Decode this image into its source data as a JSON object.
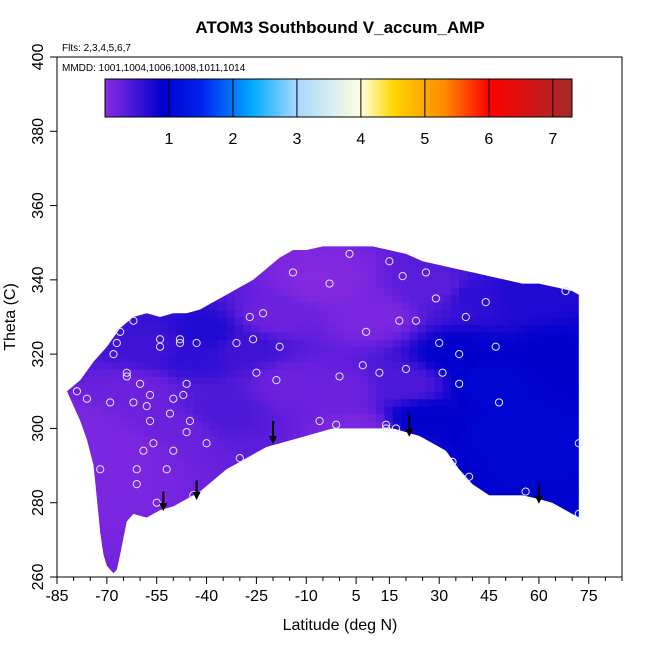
{
  "chart_data": {
    "type": "heatmap",
    "title": "ATOM3 Southbound V_accum_AMP",
    "flights_note": "Flts: 2,3,4,5,6,7",
    "dates_note": "MMDD: 1001,1004,1006,1008,1011,1014",
    "xlabel": "Latitude (deg N)",
    "ylabel": "Theta (C)",
    "xlim": [
      -85,
      85
    ],
    "ylim": [
      260,
      400
    ],
    "x_ticks": [
      -85,
      -70,
      -55,
      -40,
      -25,
      -10,
      5,
      15,
      30,
      45,
      60,
      75
    ],
    "y_ticks": [
      260,
      280,
      300,
      320,
      340,
      360,
      380,
      400
    ],
    "colorbar": {
      "range": [
        0,
        7.3
      ],
      "ticks": [
        1,
        2,
        3,
        4,
        5,
        6,
        7
      ],
      "stops": [
        {
          "v": 0.0,
          "c": "#8b2be2"
        },
        {
          "v": 0.9,
          "c": "#0000cd"
        },
        {
          "v": 1.5,
          "c": "#0022ee"
        },
        {
          "v": 2.3,
          "c": "#00aaff"
        },
        {
          "v": 3.0,
          "c": "#a8d8ff"
        },
        {
          "v": 4.0,
          "c": "#ffffe0"
        },
        {
          "v": 4.5,
          "c": "#ffd700"
        },
        {
          "v": 5.3,
          "c": "#ff8c00"
        },
        {
          "v": 6.0,
          "c": "#ff0000"
        },
        {
          "v": 7.3,
          "c": "#a52a2a"
        }
      ]
    },
    "coverage_upper": [
      [
        -82,
        310
      ],
      [
        -78,
        313
      ],
      [
        -74,
        318
      ],
      [
        -70,
        322
      ],
      [
        -66,
        327
      ],
      [
        -62,
        330
      ],
      [
        -58,
        331
      ],
      [
        -54,
        330
      ],
      [
        -50,
        331
      ],
      [
        -46,
        331
      ],
      [
        -42,
        332
      ],
      [
        -38,
        334
      ],
      [
        -34,
        336
      ],
      [
        -30,
        338
      ],
      [
        -26,
        340
      ],
      [
        -22,
        343
      ],
      [
        -18,
        346
      ],
      [
        -14,
        348
      ],
      [
        -10,
        348
      ],
      [
        -5,
        349
      ],
      [
        0,
        349
      ],
      [
        5,
        349
      ],
      [
        10,
        349
      ],
      [
        15,
        348
      ],
      [
        20,
        347
      ],
      [
        25,
        345
      ],
      [
        30,
        344
      ],
      [
        35,
        343
      ],
      [
        40,
        342
      ],
      [
        45,
        341
      ],
      [
        50,
        340
      ],
      [
        55,
        339
      ],
      [
        60,
        339
      ],
      [
        65,
        338
      ],
      [
        70,
        337
      ],
      [
        72,
        336
      ]
    ],
    "coverage_lower": [
      [
        72,
        276
      ],
      [
        68,
        278
      ],
      [
        64,
        280
      ],
      [
        60,
        281
      ],
      [
        55,
        282
      ],
      [
        50,
        282
      ],
      [
        45,
        282
      ],
      [
        40,
        285
      ],
      [
        36,
        289
      ],
      [
        32,
        294
      ],
      [
        28,
        296
      ],
      [
        24,
        298
      ],
      [
        20,
        299
      ],
      [
        16,
        300
      ],
      [
        12,
        300
      ],
      [
        8,
        300
      ],
      [
        5,
        300
      ],
      [
        2,
        300
      ],
      [
        -2,
        300
      ],
      [
        -6,
        299
      ],
      [
        -10,
        298
      ],
      [
        -14,
        297
      ],
      [
        -18,
        296
      ],
      [
        -22,
        295
      ],
      [
        -26,
        293
      ],
      [
        -30,
        291
      ],
      [
        -34,
        289
      ],
      [
        -38,
        286
      ],
      [
        -42,
        283
      ],
      [
        -46,
        281
      ],
      [
        -50,
        279
      ],
      [
        -54,
        278
      ],
      [
        -58,
        276
      ],
      [
        -62,
        277
      ],
      [
        -64,
        275
      ],
      [
        -66,
        266
      ],
      [
        -67,
        262
      ],
      [
        -68,
        261
      ],
      [
        -70,
        263
      ],
      [
        -71,
        266
      ],
      [
        -72,
        272
      ],
      [
        -73,
        281
      ],
      [
        -74,
        290
      ],
      [
        -76,
        297
      ],
      [
        -78,
        302
      ],
      [
        -80,
        306
      ],
      [
        -82,
        310
      ]
    ],
    "field_samples": [
      {
        "lat": -80,
        "theta": 300,
        "v": 0.1
      },
      {
        "lat": -72,
        "theta": 285,
        "v": 0.1
      },
      {
        "lat": -65,
        "theta": 295,
        "v": 0.1
      },
      {
        "lat": -60,
        "theta": 310,
        "v": 0.2
      },
      {
        "lat": -50,
        "theta": 300,
        "v": 0.2
      },
      {
        "lat": -45,
        "theta": 320,
        "v": 0.6
      },
      {
        "lat": -40,
        "theta": 326,
        "v": 0.7
      },
      {
        "lat": -35,
        "theta": 305,
        "v": 0.4
      },
      {
        "lat": -28,
        "theta": 322,
        "v": 0.5
      },
      {
        "lat": -20,
        "theta": 330,
        "v": 0.2
      },
      {
        "lat": -15,
        "theta": 312,
        "v": 0.2
      },
      {
        "lat": -5,
        "theta": 340,
        "v": 0.05
      },
      {
        "lat": 0,
        "theta": 310,
        "v": 0.2
      },
      {
        "lat": 10,
        "theta": 330,
        "v": 0.1
      },
      {
        "lat": 20,
        "theta": 312,
        "v": 0.4
      },
      {
        "lat": 25,
        "theta": 303,
        "v": 0.9
      },
      {
        "lat": 35,
        "theta": 320,
        "v": 0.9
      },
      {
        "lat": 45,
        "theta": 312,
        "v": 1.0
      },
      {
        "lat": 50,
        "theta": 300,
        "v": 1.0
      },
      {
        "lat": 60,
        "theta": 292,
        "v": 1.0
      },
      {
        "lat": 68,
        "theta": 282,
        "v": 0.95
      },
      {
        "lat": 65,
        "theta": 320,
        "v": 0.9
      },
      {
        "lat": 40,
        "theta": 336,
        "v": 0.6
      },
      {
        "lat": 30,
        "theta": 338,
        "v": 0.3
      },
      {
        "lat": 55,
        "theta": 336,
        "v": 0.7
      },
      {
        "lat": -55,
        "theta": 322,
        "v": 0.5
      },
      {
        "lat": 5,
        "theta": 300,
        "v": 0.1
      }
    ],
    "sample_points": [
      [
        -79,
        310
      ],
      [
        -76,
        308
      ],
      [
        -72,
        289
      ],
      [
        -69,
        307
      ],
      [
        -68,
        320
      ],
      [
        -67,
        323
      ],
      [
        -66,
        326
      ],
      [
        -64,
        315
      ],
      [
        -64,
        314
      ],
      [
        -62,
        329
      ],
      [
        -62,
        307
      ],
      [
        -61,
        289
      ],
      [
        -61,
        285
      ],
      [
        -60,
        312
      ],
      [
        -59,
        294
      ],
      [
        -58,
        306
      ],
      [
        -57,
        302
      ],
      [
        -57,
        309
      ],
      [
        -56,
        296
      ],
      [
        -55,
        280
      ],
      [
        -54,
        324
      ],
      [
        -54,
        322
      ],
      [
        -52,
        289
      ],
      [
        -51,
        304
      ],
      [
        -50,
        308
      ],
      [
        -50,
        294
      ],
      [
        -48,
        324
      ],
      [
        -48,
        323
      ],
      [
        -47,
        309
      ],
      [
        -46,
        312
      ],
      [
        -46,
        299
      ],
      [
        -45,
        302
      ],
      [
        -44,
        282
      ],
      [
        -43,
        323
      ],
      [
        -40,
        296
      ],
      [
        -31,
        323
      ],
      [
        -30,
        292
      ],
      [
        -27,
        330
      ],
      [
        -26,
        324
      ],
      [
        -25,
        315
      ],
      [
        -23,
        331
      ],
      [
        -19,
        313
      ],
      [
        -18,
        322
      ],
      [
        -14,
        342
      ],
      [
        -6,
        302
      ],
      [
        -3,
        339
      ],
      [
        -1,
        301
      ],
      [
        0,
        314
      ],
      [
        3,
        347
      ],
      [
        7,
        317
      ],
      [
        8,
        326
      ],
      [
        12,
        315
      ],
      [
        14,
        301
      ],
      [
        15,
        345
      ],
      [
        17,
        300
      ],
      [
        18,
        329
      ],
      [
        19,
        341
      ],
      [
        20,
        316
      ],
      [
        23,
        329
      ],
      [
        26,
        342
      ],
      [
        29,
        335
      ],
      [
        30,
        323
      ],
      [
        31,
        315
      ],
      [
        34,
        291
      ],
      [
        34,
        291
      ],
      [
        36,
        312
      ],
      [
        36,
        320
      ],
      [
        38,
        330
      ],
      [
        39,
        287
      ],
      [
        44,
        334
      ],
      [
        47,
        322
      ],
      [
        48,
        307
      ],
      [
        56,
        283
      ],
      [
        68,
        337
      ],
      [
        72,
        296
      ],
      [
        72,
        277
      ],
      [
        14,
        300
      ]
    ],
    "arrows_lat": [
      -53,
      -43,
      -20,
      21,
      60
    ],
    "arrow_theta_top": [
      283,
      286,
      302,
      304,
      285
    ],
    "arrow_theta_bottom": [
      278,
      281,
      296,
      298,
      280
    ]
  }
}
